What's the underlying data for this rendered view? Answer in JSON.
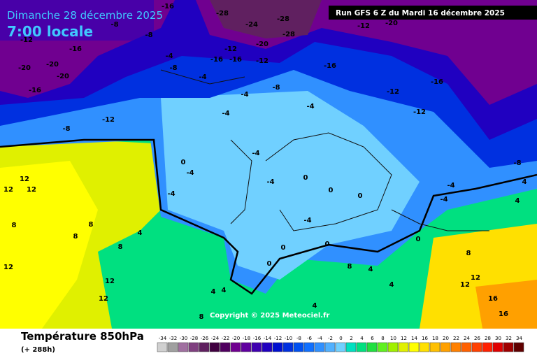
{
  "header": {
    "date": "Dimanche 28 décembre 2025",
    "time": "7:00 locale",
    "run": "Run GFS 6 Z du Mardi 16 décembre 2025"
  },
  "copyright": "Copyright © 2025 Meteociel.fr",
  "footer": {
    "title": "Température 850hPa",
    "lead": "(+ 288h)"
  },
  "scale": {
    "labels": [
      -34,
      -32,
      -30,
      -28,
      -26,
      -24,
      -22,
      -20,
      -18,
      -16,
      -14,
      -12,
      -10,
      -8,
      -6,
      -4,
      -2,
      0,
      2,
      4,
      6,
      8,
      10,
      12,
      14,
      16,
      18,
      20,
      22,
      24,
      26,
      28,
      30,
      32,
      34
    ],
    "colors": [
      "#d0d0d0",
      "#a0a0a0",
      "#a070a0",
      "#804080",
      "#602060",
      "#400040",
      "#500060",
      "#700090",
      "#6000a0",
      "#4000b0",
      "#2000c0",
      "#0010d0",
      "#0030e0",
      "#0050f0",
      "#1070ff",
      "#3090ff",
      "#50b0ff",
      "#70d0ff",
      "#00e0c0",
      "#00e080",
      "#20e040",
      "#60f020",
      "#a0f000",
      "#e0f000",
      "#ffff00",
      "#ffe000",
      "#ffc000",
      "#ffa000",
      "#ff8000",
      "#ff6000",
      "#ff4000",
      "#ff2000",
      "#e00000",
      "#a00000",
      "#600000"
    ]
  },
  "map_labels": [
    -12,
    -16,
    -20,
    -20,
    -20,
    -16,
    -8,
    -12,
    -8,
    -8,
    -16,
    -28,
    -24,
    -28,
    -28,
    -20,
    -12,
    -16,
    -16,
    -12,
    -8,
    -16,
    -12,
    -20,
    -12,
    -16,
    -12,
    -8,
    -8,
    -4,
    -4,
    -4,
    -4,
    -4,
    -4,
    -4,
    -4,
    -4,
    0,
    0,
    0,
    0,
    -4,
    -4,
    0,
    0,
    0,
    0,
    -4,
    12,
    12,
    12,
    8,
    8,
    8,
    4,
    8,
    12,
    12,
    12,
    4,
    4,
    4,
    4,
    12,
    16,
    16,
    12,
    4,
    4,
    8,
    8,
    8,
    4
  ]
}
